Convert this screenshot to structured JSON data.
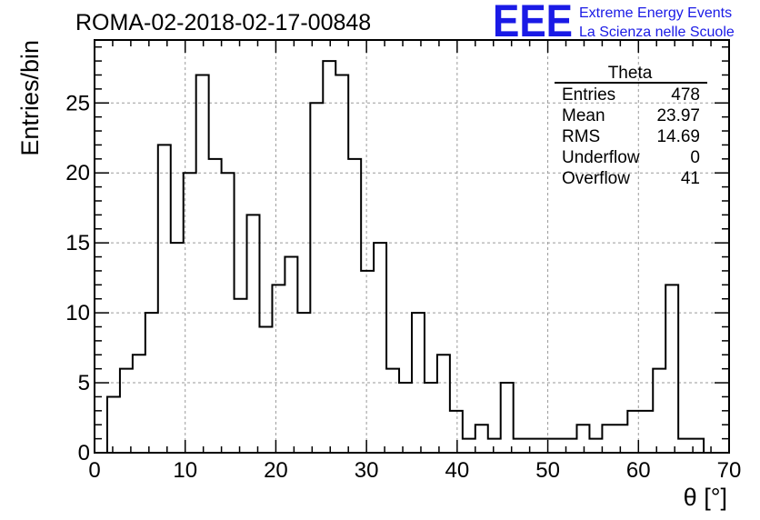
{
  "title": "ROMA-02-2018-02-17-00848",
  "logo": {
    "mark": "EEE",
    "line1": "Extreme Energy Events",
    "line2": "La Scienza nelle Scuole",
    "color": "#1a1ae6"
  },
  "stats": {
    "name": "Theta",
    "rows": [
      {
        "label": "Entries",
        "value": "478"
      },
      {
        "label": "Mean",
        "value": "23.97"
      },
      {
        "label": "RMS",
        "value": "14.69"
      },
      {
        "label": "Underflow",
        "value": "0"
      },
      {
        "label": "Overflow",
        "value": "41"
      }
    ]
  },
  "chart_data": {
    "type": "histogram",
    "title": "ROMA-02-2018-02-17-00848",
    "xlabel": "θ [°]",
    "ylabel": "Entries/bin",
    "xlim": [
      0,
      70
    ],
    "ylim": [
      0,
      29.5
    ],
    "xticks": [
      0,
      10,
      20,
      30,
      40,
      50,
      60,
      70
    ],
    "yticks": [
      0,
      5,
      10,
      15,
      20,
      25
    ],
    "grid": true,
    "bin_edges": [
      1.4,
      2.8,
      4.2,
      5.6,
      7.0,
      8.4,
      9.8,
      11.2,
      12.6,
      14.0,
      15.4,
      16.8,
      18.2,
      19.6,
      21.0,
      22.4,
      23.8,
      25.2,
      26.6,
      28.0,
      29.4,
      30.8,
      32.2,
      33.6,
      35.0,
      36.4,
      37.8,
      39.2,
      40.6,
      42.0,
      43.4,
      44.8,
      46.2,
      47.6,
      49.0,
      50.4,
      51.8,
      53.2,
      54.6,
      56.0,
      57.4,
      58.8,
      60.2,
      61.6,
      63.0,
      64.4,
      65.8,
      67.2
    ],
    "values": [
      4,
      6,
      7,
      10,
      22,
      15,
      20,
      27,
      21,
      20,
      11,
      17,
      9,
      12,
      14,
      10,
      25,
      28,
      27,
      21,
      13,
      15,
      6,
      5,
      10,
      5,
      7,
      3,
      1,
      2,
      1,
      5,
      1,
      1,
      1,
      1,
      1,
      2,
      1,
      2,
      2,
      3,
      3,
      6,
      12,
      1,
      1
    ],
    "line_color": "#000000",
    "grid_color": "#9a9a9a"
  }
}
